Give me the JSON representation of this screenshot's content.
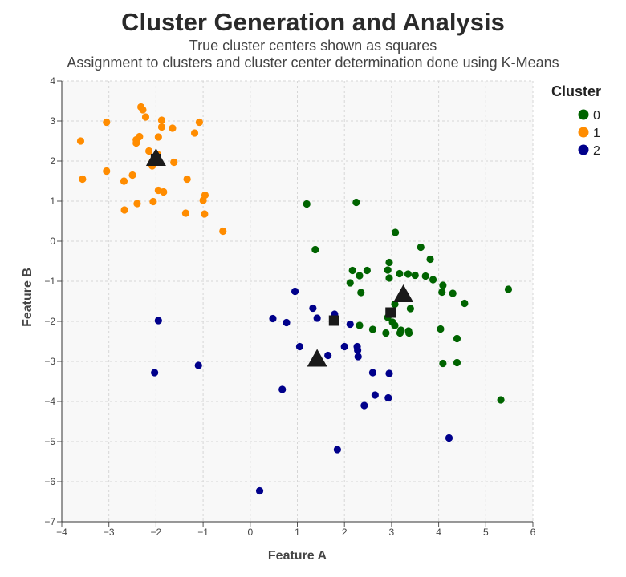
{
  "chart_data": {
    "type": "scatter",
    "title": "Cluster Generation and Analysis",
    "subtitle_lines": [
      "True cluster centers shown as squares",
      "Assignment to clusters and cluster center determination done using K-Means"
    ],
    "xlabel": "Feature A",
    "ylabel": "Feature B",
    "xlim": [
      -4,
      6
    ],
    "ylim": [
      -7,
      4
    ],
    "x_ticks": [
      "−4",
      "−3",
      "−2",
      "−1",
      "0",
      "1",
      "2",
      "3",
      "4",
      "5",
      "6"
    ],
    "y_ticks": [
      "−7",
      "−6",
      "−5",
      "−4",
      "−3",
      "−2",
      "−1",
      "0",
      "1",
      "2",
      "3",
      "4"
    ],
    "x_tick_values": [
      -4,
      -3,
      -2,
      -1,
      0,
      1,
      2,
      3,
      4,
      5,
      6
    ],
    "y_tick_values": [
      -7,
      -6,
      -5,
      -4,
      -3,
      -2,
      -1,
      0,
      1,
      2,
      3,
      4
    ],
    "grid": true,
    "legend": {
      "title": "Cluster",
      "placement": "right"
    },
    "series": [
      {
        "name": "0",
        "color": "#006400",
        "points": [
          [
            1.2,
            0.93
          ],
          [
            2.25,
            0.97
          ],
          [
            3.08,
            0.22
          ],
          [
            1.38,
            -0.21
          ],
          [
            3.62,
            -0.15
          ],
          [
            3.82,
            -0.45
          ],
          [
            2.95,
            -0.53
          ],
          [
            2.17,
            -0.73
          ],
          [
            2.48,
            -0.73
          ],
          [
            2.92,
            -0.72
          ],
          [
            3.17,
            -0.81
          ],
          [
            3.35,
            -0.82
          ],
          [
            3.5,
            -0.85
          ],
          [
            3.72,
            -0.87
          ],
          [
            2.32,
            -0.86
          ],
          [
            2.95,
            -0.92
          ],
          [
            3.88,
            -0.96
          ],
          [
            2.12,
            -1.04
          ],
          [
            4.09,
            -1.1
          ],
          [
            4.07,
            -1.27
          ],
          [
            2.35,
            -1.28
          ],
          [
            4.3,
            -1.3
          ],
          [
            5.48,
            -1.2
          ],
          [
            4.55,
            -1.55
          ],
          [
            3.07,
            -1.57
          ],
          [
            3.4,
            -1.68
          ],
          [
            2.92,
            -1.9
          ],
          [
            3.02,
            -2.02
          ],
          [
            3.07,
            -2.1
          ],
          [
            2.32,
            -2.1
          ],
          [
            3.2,
            -2.22
          ],
          [
            3.36,
            -2.24
          ],
          [
            2.6,
            -2.2
          ],
          [
            3.18,
            -2.29
          ],
          [
            3.37,
            -2.29
          ],
          [
            2.88,
            -2.29
          ],
          [
            4.04,
            -2.19
          ],
          [
            4.39,
            -2.43
          ],
          [
            4.09,
            -3.05
          ],
          [
            4.39,
            -3.03
          ],
          [
            5.32,
            -3.96
          ]
        ]
      },
      {
        "name": "1",
        "color": "#FF8C00",
        "points": [
          [
            -2.32,
            3.35
          ],
          [
            -2.28,
            3.28
          ],
          [
            -2.22,
            3.1
          ],
          [
            -3.05,
            2.97
          ],
          [
            -1.88,
            3.02
          ],
          [
            -1.08,
            2.97
          ],
          [
            -1.88,
            2.85
          ],
          [
            -1.65,
            2.82
          ],
          [
            -2.35,
            2.61
          ],
          [
            -1.95,
            2.6
          ],
          [
            -1.18,
            2.7
          ],
          [
            -3.6,
            2.5
          ],
          [
            -2.42,
            2.53
          ],
          [
            -2.42,
            2.45
          ],
          [
            -2.15,
            2.25
          ],
          [
            -1.97,
            2.17
          ],
          [
            -2.08,
            1.98
          ],
          [
            -1.62,
            1.97
          ],
          [
            -2.08,
            1.88
          ],
          [
            -3.05,
            1.75
          ],
          [
            -2.5,
            1.65
          ],
          [
            -3.56,
            1.55
          ],
          [
            -2.68,
            1.5
          ],
          [
            -1.34,
            1.55
          ],
          [
            -1.95,
            1.27
          ],
          [
            -1.84,
            1.23
          ],
          [
            -0.96,
            1.15
          ],
          [
            -1.0,
            1.02
          ],
          [
            -2.06,
            0.99
          ],
          [
            -2.4,
            0.94
          ],
          [
            -2.67,
            0.78
          ],
          [
            -1.37,
            0.7
          ],
          [
            -0.97,
            0.68
          ],
          [
            -0.58,
            0.25
          ]
        ]
      },
      {
        "name": "2",
        "color": "#00008B",
        "points": [
          [
            0.95,
            -1.25
          ],
          [
            1.33,
            -1.67
          ],
          [
            1.79,
            -1.82
          ],
          [
            0.48,
            -1.93
          ],
          [
            1.42,
            -1.92
          ],
          [
            0.77,
            -2.03
          ],
          [
            2.12,
            -2.07
          ],
          [
            -1.95,
            -1.98
          ],
          [
            1.05,
            -2.63
          ],
          [
            2.0,
            -2.63
          ],
          [
            2.27,
            -2.63
          ],
          [
            2.28,
            -2.72
          ],
          [
            1.65,
            -2.85
          ],
          [
            2.29,
            -2.88
          ],
          [
            2.6,
            -3.28
          ],
          [
            2.95,
            -3.3
          ],
          [
            -2.03,
            -3.28
          ],
          [
            -1.1,
            -3.1
          ],
          [
            0.68,
            -3.7
          ],
          [
            2.65,
            -3.84
          ],
          [
            2.93,
            -3.91
          ],
          [
            2.42,
            -4.1
          ],
          [
            4.22,
            -4.91
          ],
          [
            1.85,
            -5.2
          ],
          [
            0.2,
            -6.23
          ]
        ]
      }
    ],
    "true_centers": {
      "marker": "square",
      "color": "#1a1a1a",
      "points": [
        [
          -2.0,
          2.05
        ],
        [
          1.78,
          -1.98
        ],
        [
          2.98,
          -1.78
        ]
      ]
    },
    "kmeans_centers": {
      "marker": "triangle",
      "color": "#1a1a1a",
      "points": [
        [
          -2.0,
          2.08
        ],
        [
          1.42,
          -2.93
        ],
        [
          3.25,
          -1.32
        ]
      ]
    }
  }
}
